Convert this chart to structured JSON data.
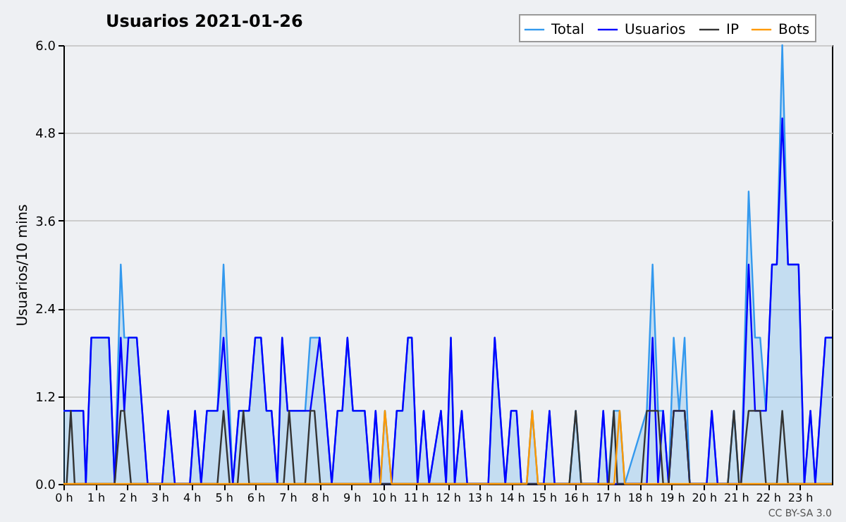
{
  "chart_data": {
    "type": "line",
    "title": "Usuarios  2021-01-26",
    "ylabel": "Usuarios/10 mins",
    "annotations": [
      "CC BY-SA 3.0"
    ],
    "xlim": [
      0,
      24
    ],
    "ylim": [
      0,
      6
    ],
    "xticks": [
      {
        "value": 0,
        "label": "0 h"
      },
      {
        "value": 1,
        "label": "1 h"
      },
      {
        "value": 2,
        "label": "2 h"
      },
      {
        "value": 3,
        "label": "3 h"
      },
      {
        "value": 4,
        "label": "4 h"
      },
      {
        "value": 5,
        "label": "5 h"
      },
      {
        "value": 6,
        "label": "6 h"
      },
      {
        "value": 7,
        "label": "7 h"
      },
      {
        "value": 8,
        "label": "8 h"
      },
      {
        "value": 9,
        "label": "9 h"
      },
      {
        "value": 10,
        "label": "10 h"
      },
      {
        "value": 11,
        "label": "11 h"
      },
      {
        "value": 12,
        "label": "12 h"
      },
      {
        "value": 13,
        "label": "13 h"
      },
      {
        "value": 14,
        "label": "14 h"
      },
      {
        "value": 15,
        "label": "15 h"
      },
      {
        "value": 16,
        "label": "16 h"
      },
      {
        "value": 17,
        "label": "17 h"
      },
      {
        "value": 18,
        "label": "18 h"
      },
      {
        "value": 19,
        "label": "19 h"
      },
      {
        "value": 20,
        "label": "20 h"
      },
      {
        "value": 21,
        "label": "21 h"
      },
      {
        "value": 22,
        "label": "22 h"
      },
      {
        "value": 23,
        "label": "23 h"
      }
    ],
    "yticks": [
      {
        "value": 0,
        "label": "0.0"
      },
      1.2,
      2.4,
      3.6,
      4.8,
      {
        "value": 6,
        "label": "6.0"
      }
    ],
    "grid": "y",
    "legend": "top right",
    "series": [
      {
        "name": "Total",
        "type": "area",
        "color": "#3399ee",
        "x": [
          0,
          0.62,
          0.7,
          0.87,
          1.42,
          1.6,
          1.79,
          1.9,
          2.29,
          2.63,
          3.08,
          3.27,
          3.48,
          3.95,
          4.11,
          4.3,
          4.48,
          4.81,
          5.0,
          5.29,
          5.48,
          5.8,
          5.99,
          6.17,
          6.34,
          6.5,
          6.68,
          6.83,
          7.0,
          7.55,
          7.71,
          8.0,
          8.38,
          8.56,
          8.71,
          8.87,
          9.04,
          9.41,
          9.59,
          9.75,
          9.9,
          10.04,
          10.25,
          10.41,
          10.59,
          10.76,
          10.88,
          11.06,
          11.25,
          11.42,
          11.79,
          11.95,
          12.1,
          12.22,
          12.44,
          12.61,
          13.27,
          13.47,
          13.8,
          13.98,
          14.15,
          14.3,
          14.47,
          14.64,
          14.82,
          15.0,
          15.18,
          15.34,
          15.8,
          16.0,
          16.17,
          16.7,
          16.86,
          17.0,
          17.19,
          17.37,
          17.53,
          18.22,
          18.4,
          18.57,
          18.73,
          18.9,
          19.06,
          19.23,
          19.4,
          19.56,
          20.09,
          20.25,
          20.43,
          20.75,
          20.94,
          21.1,
          21.16,
          21.4,
          21.6,
          21.76,
          21.94,
          22.13,
          22.28,
          22.45,
          22.63,
          22.96,
          23.14,
          23.33,
          23.48,
          23.8,
          24
        ],
        "values": [
          1,
          1,
          0,
          2,
          2,
          0,
          3,
          2,
          2,
          0,
          0,
          1,
          0,
          0,
          1,
          0,
          1,
          1,
          3,
          0,
          1,
          1,
          2,
          2,
          1,
          1,
          0,
          2,
          1,
          1,
          2,
          2,
          0,
          1,
          1,
          2,
          1,
          1,
          0,
          1,
          0,
          1,
          0,
          1,
          1,
          2,
          2,
          0,
          1,
          0,
          1,
          0,
          2,
          0,
          1,
          0,
          0,
          2,
          0,
          1,
          1,
          0,
          0,
          1,
          0,
          0,
          1,
          0,
          0,
          1,
          0,
          0,
          1,
          0,
          1,
          1,
          0,
          1,
          3,
          1,
          1,
          0,
          2,
          1,
          2,
          0,
          0,
          1,
          0,
          0,
          1,
          0,
          0,
          4,
          2,
          2,
          1,
          3,
          3,
          6,
          3,
          3,
          0,
          1,
          0,
          2,
          2
        ]
      },
      {
        "name": "Usuarios",
        "color": "#0000ff",
        "x": [
          0,
          0.62,
          0.7,
          0.87,
          1.42,
          1.6,
          1.79,
          1.9,
          2.03,
          2.29,
          2.63,
          3.08,
          3.27,
          3.48,
          3.95,
          4.11,
          4.3,
          4.48,
          4.81,
          5.0,
          5.29,
          5.48,
          5.8,
          5.99,
          6.17,
          6.34,
          6.5,
          6.68,
          6.83,
          7.0,
          7.71,
          8.0,
          8.38,
          8.56,
          8.71,
          8.87,
          9.04,
          9.41,
          9.59,
          9.75,
          9.9,
          10.25,
          10.41,
          10.59,
          10.76,
          10.88,
          11.06,
          11.25,
          11.42,
          11.79,
          11.95,
          12.1,
          12.22,
          12.44,
          12.61,
          13.27,
          13.47,
          13.8,
          13.98,
          14.15,
          14.3,
          15.0,
          15.18,
          15.34,
          16.7,
          16.86,
          17.0,
          18.22,
          18.4,
          18.57,
          18.73,
          18.9,
          19.06,
          19.4,
          19.56,
          20.09,
          20.25,
          20.43,
          21.16,
          21.4,
          21.6,
          21.94,
          22.13,
          22.28,
          22.45,
          22.63,
          22.96,
          23.14,
          23.33,
          23.48,
          23.8,
          24
        ],
        "values": [
          1,
          1,
          0,
          2,
          2,
          0,
          2,
          1,
          2,
          2,
          0,
          0,
          1,
          0,
          0,
          1,
          0,
          1,
          1,
          2,
          0,
          1,
          1,
          2,
          2,
          1,
          1,
          0,
          2,
          1,
          1,
          2,
          0,
          1,
          1,
          2,
          1,
          1,
          0,
          1,
          0,
          0,
          1,
          1,
          2,
          2,
          0,
          1,
          0,
          1,
          0,
          2,
          0,
          1,
          0,
          0,
          2,
          0,
          1,
          1,
          0,
          0,
          1,
          0,
          0,
          1,
          0,
          0,
          2,
          0,
          1,
          0,
          1,
          1,
          0,
          0,
          1,
          0,
          0,
          3,
          1,
          1,
          3,
          3,
          5,
          3,
          3,
          0,
          1,
          0,
          2,
          2
        ]
      },
      {
        "name": "IP",
        "color": "#333333",
        "x": [
          0,
          0.1,
          0.23,
          0.35,
          1.6,
          1.79,
          1.9,
          2.11,
          4.81,
          5.0,
          5.19,
          5.44,
          5.62,
          5.8,
          6.88,
          7.05,
          7.22,
          7.55,
          7.71,
          7.84,
          8.02,
          15.8,
          16.0,
          16.17,
          17.03,
          17.19,
          17.3,
          18.05,
          18.22,
          18.57,
          18.73,
          18.9,
          19.06,
          19.4,
          19.56,
          20.75,
          20.94,
          21.1,
          21.16,
          21.4,
          21.76,
          21.94,
          22.28,
          22.45,
          22.63,
          24
        ],
        "values": [
          0,
          0,
          1,
          0,
          0,
          1,
          1,
          0,
          0,
          1,
          0,
          0,
          1,
          0,
          0,
          1,
          0,
          0,
          1,
          1,
          0,
          0,
          1,
          0,
          0,
          1,
          0,
          0,
          1,
          1,
          0,
          0,
          1,
          1,
          0,
          0,
          1,
          0,
          0,
          1,
          1,
          0,
          0,
          1,
          0,
          0
        ]
      },
      {
        "name": "Bots",
        "color": "#ff9900",
        "x": [
          0,
          9.9,
          10.04,
          10.25,
          14.47,
          14.64,
          14.82,
          17.2,
          17.37,
          17.53,
          24
        ],
        "values": [
          0,
          0,
          1,
          0,
          0,
          1,
          0,
          0,
          1,
          0,
          0
        ]
      }
    ]
  }
}
